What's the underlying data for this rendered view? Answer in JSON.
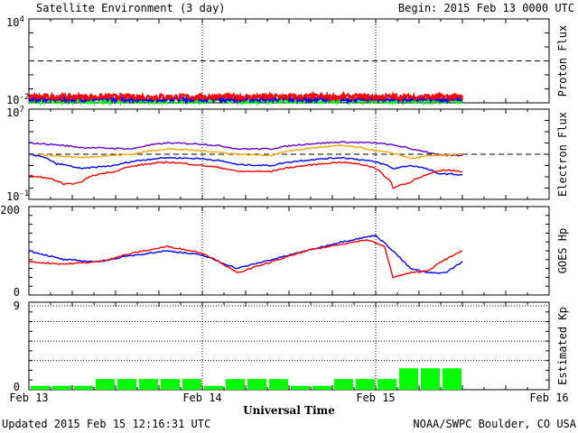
{
  "header": {
    "title": "Satellite Environment (3 day)",
    "begin": "Begin:  2015 Feb 13 0000 UTC"
  },
  "footer": {
    "updated": "Updated 2015 Feb 15 12:16:31 UTC",
    "credit": "NOAA/SWPC Boulder, CO USA"
  },
  "colors": {
    "red": "#ff0000",
    "blue": "#0000ff",
    "green": "#00ff00",
    "orange": "#ffa500",
    "purple": "#6600cc"
  },
  "chart_data": [
    {
      "type": "line",
      "panel": "proton",
      "ylabel": "Proton Flux",
      "yscale": "log",
      "ylim": [
        0.01,
        10000
      ],
      "ytick_labels": [
        {
          "base": "10",
          "exp": "4",
          "value": 10000
        },
        {
          "base": "10",
          "exp": "-2",
          "value": 0.01
        }
      ],
      "threshold": 10,
      "x_end_day": 2.5,
      "series": [
        {
          "color": "#00ff00",
          "level": 0.013,
          "noise": 0.18
        },
        {
          "color": "#0000ff",
          "level": 0.018,
          "noise": 0.16
        },
        {
          "color": "#ff0000",
          "level": 0.027,
          "noise": 0.2
        }
      ]
    },
    {
      "type": "line",
      "panel": "electron",
      "ylabel": "Electron Flux",
      "yscale": "log",
      "ylim": [
        0.1,
        10000000
      ],
      "ytick_labels": [
        {
          "base": "10",
          "exp": "7",
          "value": 10000000
        },
        {
          "base": "10",
          "exp": "-1",
          "value": 0.1
        }
      ],
      "threshold": 1000,
      "x_end_day": 2.5,
      "series": [
        {
          "color": "#6600cc",
          "x": [
            0,
            0.3,
            0.6,
            0.8,
            1.0,
            1.2,
            1.4,
            1.6,
            1.8,
            2.0,
            2.2,
            2.35,
            2.5
          ],
          "y": [
            10000,
            4000,
            3000,
            10000,
            8000,
            3000,
            3000,
            8000,
            12000,
            10000,
            3000,
            800,
            800
          ]
        },
        {
          "color": "#ffa500",
          "x": [
            0,
            0.3,
            0.6,
            0.8,
            1.0,
            1.2,
            1.4,
            1.6,
            1.8,
            2.0,
            2.2,
            2.35,
            2.5
          ],
          "y": [
            1000,
            500,
            1000,
            3000,
            2000,
            1000,
            800,
            3000,
            6000,
            2000,
            400,
            800,
            1000
          ]
        },
        {
          "color": "#0000ff",
          "x": [
            0,
            0.15,
            0.3,
            0.5,
            0.8,
            1.0,
            1.2,
            1.4,
            1.6,
            1.8,
            2.0,
            2.1,
            2.2,
            2.35,
            2.5
          ],
          "y": [
            1000,
            150,
            50,
            100,
            500,
            400,
            120,
            100,
            300,
            500,
            200,
            50,
            100,
            20,
            15
          ]
        },
        {
          "color": "#ff0000",
          "x": [
            0,
            0.1,
            0.2,
            0.3,
            0.5,
            0.8,
            1.0,
            1.2,
            1.4,
            1.6,
            1.8,
            1.95,
            2.05,
            2.1,
            2.2,
            2.3,
            2.4,
            2.5
          ],
          "y": [
            12,
            8,
            2,
            3,
            30,
            200,
            100,
            30,
            30,
            100,
            200,
            100,
            10,
            1,
            3,
            15,
            40,
            30
          ]
        }
      ]
    },
    {
      "type": "line",
      "panel": "hp",
      "ylabel": "GOES Hp",
      "ylim": [
        0,
        200
      ],
      "ytick_labels": [
        {
          "text": "200",
          "value": 200
        },
        {
          "text": "0",
          "value": 0
        }
      ],
      "x_end_day": 2.5,
      "series": [
        {
          "color": "#0000ff",
          "x": [
            0,
            0.2,
            0.4,
            0.6,
            0.8,
            1.0,
            1.1,
            1.2,
            1.4,
            1.6,
            1.8,
            2.0,
            2.1,
            2.2,
            2.3,
            2.4,
            2.5
          ],
          "y": [
            100,
            80,
            75,
            90,
            100,
            90,
            75,
            60,
            80,
            100,
            120,
            135,
            100,
            60,
            50,
            50,
            75
          ]
        },
        {
          "color": "#ff0000",
          "x": [
            0,
            0.2,
            0.4,
            0.6,
            0.8,
            1.0,
            1.1,
            1.2,
            1.4,
            1.6,
            1.8,
            1.95,
            2.05,
            2.1,
            2.2,
            2.3,
            2.4,
            2.5
          ],
          "y": [
            75,
            70,
            75,
            95,
            110,
            95,
            75,
            50,
            75,
            100,
            115,
            125,
            110,
            40,
            50,
            55,
            80,
            100
          ]
        }
      ]
    },
    {
      "type": "bar",
      "panel": "kp",
      "ylabel": "Estimated Kp",
      "ylim": [
        0,
        9
      ],
      "ytick_labels": [
        {
          "text": "9",
          "value": 9
        },
        {
          "text": "0",
          "value": 0
        }
      ],
      "color": "#00ff00",
      "bar_width_hours": 3,
      "values": [
        0.4,
        0.4,
        0.4,
        1.1,
        1.1,
        1.1,
        1.1,
        1.1,
        0.4,
        1.1,
        1.1,
        1.1,
        0.4,
        0.4,
        1.1,
        1.1,
        1.1,
        2.2,
        2.2,
        2.2
      ]
    }
  ],
  "x_axis": {
    "labels": [
      "Feb 13",
      "Feb 14",
      "Feb 15",
      "Feb 16"
    ],
    "title": "Universal Time"
  }
}
